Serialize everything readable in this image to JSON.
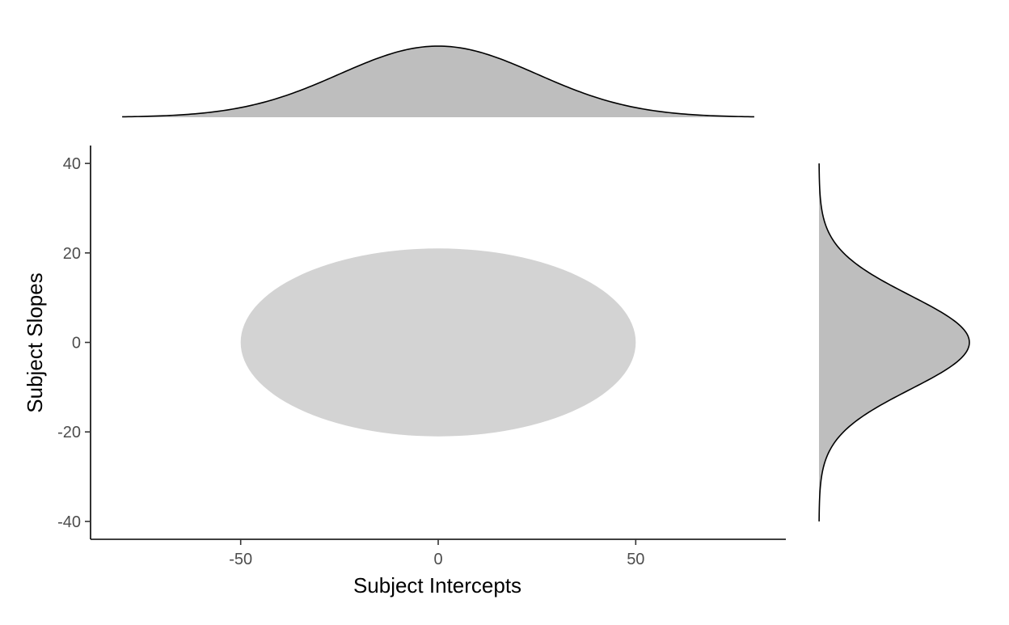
{
  "chart_data": {
    "type": "scatter",
    "title": "",
    "xlabel": "Subject Intercepts",
    "ylabel": "Subject Slopes",
    "xlim": [
      -88,
      88
    ],
    "ylim": [
      -44,
      44
    ],
    "x_ticks": [
      -50,
      0,
      50
    ],
    "y_ticks": [
      -40,
      -20,
      0,
      20,
      40
    ],
    "x_tick_labels": [
      "-50",
      "0",
      "50"
    ],
    "y_tick_labels": [
      "-40",
      "-20",
      "0",
      "20",
      "40"
    ],
    "grid": false,
    "legend": "none",
    "ellipse": {
      "center": [
        0,
        0
      ],
      "semi_axis_x": 50,
      "semi_axis_y": 21,
      "fill": "#d3d3d3"
    },
    "marginal_x": {
      "type": "area",
      "mean": 0,
      "sd": 25,
      "range": [
        -80,
        80
      ],
      "fill": "#bebebe",
      "stroke": "#000000"
    },
    "marginal_y": {
      "type": "area",
      "mean": 0,
      "sd": 10.5,
      "range": [
        -40,
        40
      ],
      "fill": "#bebebe",
      "stroke": "#000000"
    }
  }
}
